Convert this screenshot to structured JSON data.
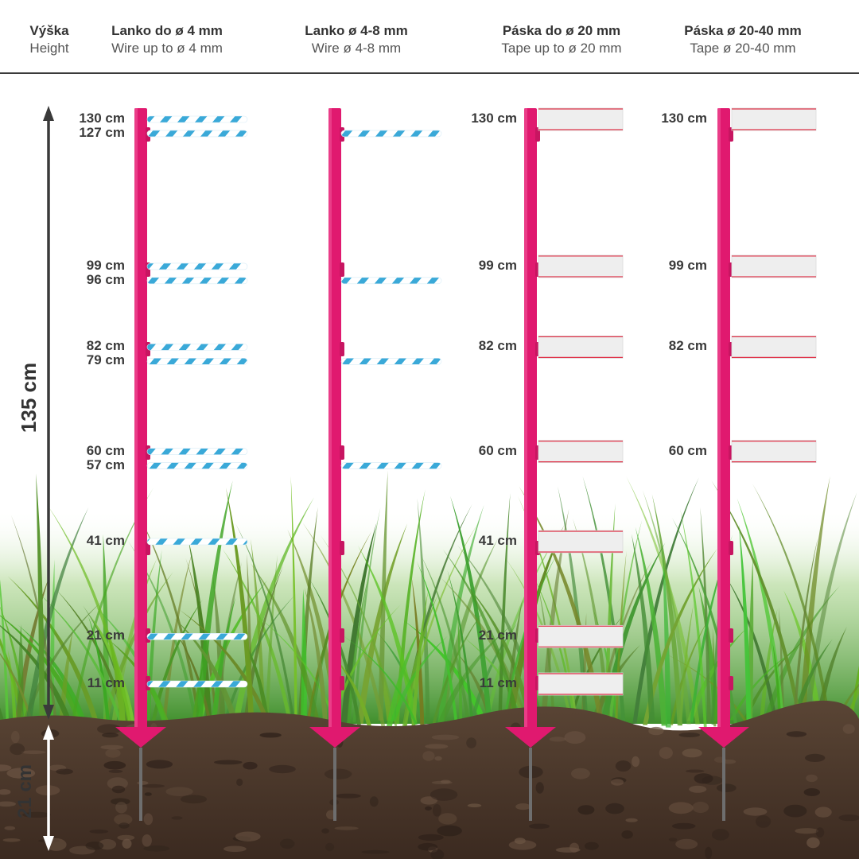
{
  "header": {
    "height": {
      "cz": "Výška",
      "en": "Height"
    },
    "columns": [
      {
        "cz": "Lanko do ø 4 mm",
        "en": "Wire up to ø 4 mm"
      },
      {
        "cz": "Lanko ø 4-8 mm",
        "en": "Wire ø 4-8 mm"
      },
      {
        "cz": "Páska do ø 20 mm",
        "en": "Tape up to ø 20 mm"
      },
      {
        "cz": "Páska ø 20-40 mm",
        "en": "Tape ø 20-40 mm"
      }
    ]
  },
  "dimensions": {
    "above_ground": "135 cm",
    "below_ground": "21 cm"
  },
  "posts": [
    {
      "kind": "wire",
      "heights_cm": [
        130,
        127,
        99,
        96,
        82,
        79,
        60,
        57,
        41,
        21,
        11
      ],
      "labels": [
        "130 cm",
        "127 cm",
        "99 cm",
        "96 cm",
        "82 cm",
        "79 cm",
        "60 cm",
        "57 cm",
        "41 cm",
        "21 cm",
        "11 cm"
      ]
    },
    {
      "kind": "wire",
      "heights_cm": [
        127,
        96,
        79,
        57
      ],
      "labels": []
    },
    {
      "kind": "tape",
      "heights_cm": [
        130,
        99,
        82,
        60,
        41,
        21,
        11
      ],
      "labels": [
        "130 cm",
        "99 cm",
        "82 cm",
        "60 cm",
        "41 cm",
        "21 cm",
        "11 cm"
      ]
    },
    {
      "kind": "tape",
      "heights_cm": [
        130,
        99,
        82,
        60
      ],
      "labels": [
        "130 cm",
        "99 cm",
        "82 cm",
        "60 cm"
      ]
    }
  ],
  "colors": {
    "post": "#e0196f",
    "wire_blue": "#3aa9d8",
    "tape_edge": "#e0344a",
    "grass": "#5fa83a",
    "soil": "#4a3528",
    "sky": "#ffffff"
  }
}
